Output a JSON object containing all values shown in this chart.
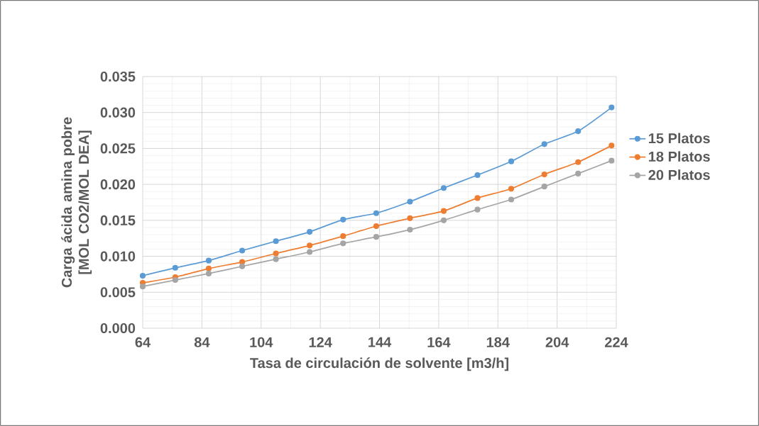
{
  "chart_data": {
    "type": "line",
    "xlabel": "Tasa de circulación de solvente [m3/h]",
    "ylabel": "Carga ácida amina pobre [MOL CO2/MOL DEA]",
    "x": [
      64,
      75,
      86.3,
      97.6,
      109,
      120.4,
      131.7,
      142.9,
      154.3,
      165.7,
      177.1,
      188.5,
      199.7,
      211.1,
      222.4
    ],
    "series": [
      {
        "name": "15 Platos",
        "color": "#5b9bd5",
        "values": [
          0.0073,
          0.0084,
          0.0094,
          0.0108,
          0.0121,
          0.0134,
          0.0151,
          0.016,
          0.0176,
          0.0195,
          0.0213,
          0.0232,
          0.0256,
          0.0274,
          0.0307
        ]
      },
      {
        "name": "18 Platos",
        "color": "#ed7d31",
        "values": [
          0.0063,
          0.0071,
          0.0083,
          0.0092,
          0.0104,
          0.0115,
          0.0128,
          0.0142,
          0.0153,
          0.0163,
          0.0181,
          0.0194,
          0.0214,
          0.0231,
          0.0254
        ]
      },
      {
        "name": "20 Platos",
        "color": "#a5a5a5",
        "values": [
          0.0058,
          0.0067,
          0.0076,
          0.0086,
          0.0096,
          0.0106,
          0.0118,
          0.0127,
          0.0137,
          0.015,
          0.0165,
          0.0179,
          0.0197,
          0.0215,
          0.0233
        ]
      }
    ],
    "xlim": [
      64,
      224
    ],
    "xticks": [
      64,
      84,
      104,
      124,
      144,
      164,
      184,
      204,
      224
    ],
    "ylim": [
      0,
      0.035
    ],
    "yticks": [
      {
        "value": 0,
        "label": "0.000"
      },
      {
        "value": 0.005,
        "label": "0.005"
      },
      {
        "value": 0.01,
        "label": "0.010"
      },
      {
        "value": 0.015,
        "label": "0.015"
      },
      {
        "value": 0.02,
        "label": "0.020"
      },
      {
        "value": 0.025,
        "label": "0.025"
      },
      {
        "value": 0.03,
        "label": "0.030"
      },
      {
        "value": 0.035,
        "label": "0.035"
      }
    ],
    "grid": true,
    "legend": "right",
    "marker": "circle",
    "line_style": "solid"
  }
}
